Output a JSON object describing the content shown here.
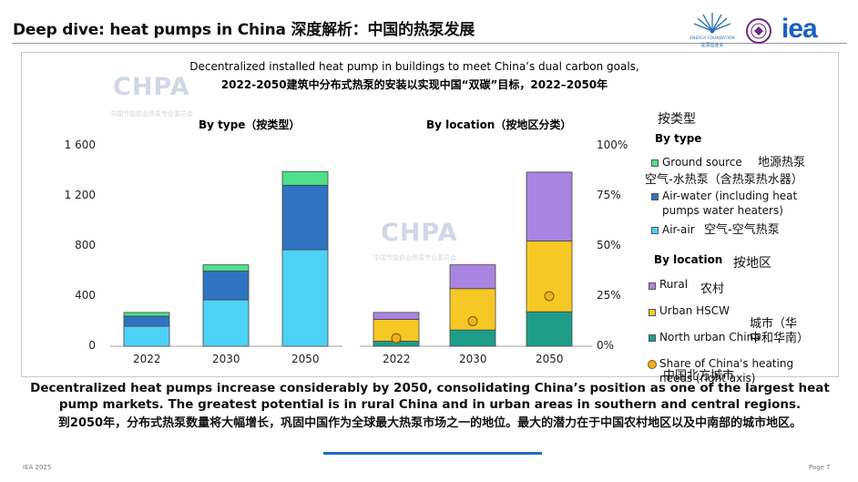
{
  "header": {
    "title": "Deep dive: heat pumps in China 深度解析：中国的热泵发展"
  },
  "logos": {
    "energy_foundation_text": "ENERGY FOUNDATION",
    "energy_foundation_cn": "能源基金会",
    "iea": "iea"
  },
  "watermark": {
    "text": "CHPA",
    "sub": "中国节能协会热泵专业委员会"
  },
  "chart_header": {
    "line1": "Decentralized installed heat pump in buildings to meet China’s dual carbon goals,",
    "line2": "2022-2050建筑中分布式热泵的安装以实现中国“双碳”目标，2022–2050年"
  },
  "chart_data": [
    {
      "type": "bar",
      "stacked": true,
      "title": "By type（按类型）",
      "categories": [
        "2022",
        "2030",
        "2050"
      ],
      "series": [
        {
          "name": "Air-air 空气-空气热泵",
          "color": "#4dd2f7",
          "values": [
            160,
            370,
            770
          ]
        },
        {
          "name": "Air-water (including heat pumps water heaters) 空气-水热泵（含热泵热水器）",
          "color": "#2f74c0",
          "values": [
            80,
            230,
            515
          ]
        },
        {
          "name": "Ground source 地源热泵",
          "color": "#4ee08a",
          "values": [
            30,
            50,
            110
          ]
        }
      ],
      "ylim": [
        0,
        1600
      ],
      "yticks": [
        "0",
        "400",
        "800",
        "1 200",
        "1 600"
      ],
      "ytick_values": [
        0,
        400,
        800,
        1200,
        1600
      ],
      "grid": false
    },
    {
      "type": "bar",
      "stacked": true,
      "title": "By location（按地区分类）",
      "categories": [
        "2022",
        "2030",
        "2050"
      ],
      "series": [
        {
          "name": "North urban China 中国北方城市",
          "color": "#1e9e8a",
          "values": [
            40,
            130,
            275
          ]
        },
        {
          "name": "Urban HSCW 城市（华中和华南）",
          "color": "#f6c825",
          "values": [
            175,
            330,
            565
          ]
        },
        {
          "name": "Rural 农村",
          "color": "#a984e0",
          "values": [
            55,
            190,
            550
          ]
        }
      ],
      "secondary": {
        "name": "Share of China's heating needs (right axis)",
        "color": "#f2b01e",
        "values": [
          0.04,
          0.125,
          0.25
        ]
      },
      "ylim": [
        0,
        1600
      ],
      "y2lim": [
        0,
        1
      ],
      "y2ticks": [
        "0%",
        "25%",
        "50%",
        "75%",
        "100%"
      ],
      "y2tick_values": [
        0,
        0.25,
        0.5,
        0.75,
        1
      ],
      "grid": false
    }
  ],
  "legend": {
    "type_head_cn": "按类型",
    "type_head_en": "By type",
    "ground": "Ground source",
    "ground_cn": "地源热泵",
    "air_water_cn": "空气-水热泵（含热泵热水器）",
    "air_water_1": "Air-water (including heat",
    "air_water_2": "pumps water heaters)",
    "air_air": "Air-air",
    "air_air_cn": "空气-空气热泵",
    "loc_head_en": "By location",
    "loc_head_cn": "按地区",
    "rural": "Rural",
    "rural_cn": "农村",
    "urban": "Urban HSCW",
    "urban_cn_1": "城市（华",
    "urban_cn_2": "中和华南）",
    "north": "North urban China",
    "north_cn": "中国北方城市",
    "share_1": "Share of China's heating",
    "share_2": "needs (right axis)"
  },
  "conclusion": {
    "en": "Decentralized heat pumps increase considerably by 2050, consolidating China’s position as one of the largest heat pump markets. The greatest potential is in rural China and in urban areas in southern and central regions.",
    "cn": "到2050年，分布式热泵数量将大幅增长，巩固中国作为全球最大热泵市场之一的地位。最大的潜力在于中国农村地区以及中南部的城市地区。"
  },
  "footer": {
    "left": "IEA 2025",
    "right": "Page 7"
  }
}
